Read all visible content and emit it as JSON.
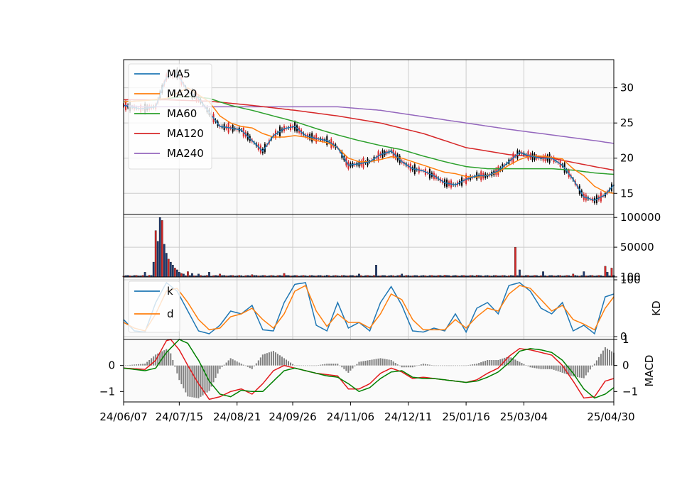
{
  "chart_data": [
    {
      "type": "candlestick",
      "panel": "price",
      "title": "",
      "xlabel": "",
      "ylabel": "",
      "ylim": [
        12,
        34
      ],
      "yticks": [
        15,
        20,
        25,
        30
      ],
      "grid": true,
      "legend_position": "upper-left",
      "series": [
        {
          "name": "MA5",
          "color": "#1f77b4",
          "x": [
            0,
            8,
            15,
            20,
            25,
            30,
            35,
            40,
            45,
            50,
            55,
            60,
            65,
            70,
            75,
            80,
            85,
            90,
            95,
            100,
            105,
            110,
            115,
            120,
            125,
            130,
            135,
            140,
            145,
            150,
            155,
            160,
            165,
            170,
            175,
            180,
            185,
            190,
            195,
            200,
            205,
            210,
            215,
            220,
            225,
            229
          ],
          "y": [
            27.5,
            27.0,
            27.3,
            31.5,
            32.0,
            29.5,
            28.5,
            26.5,
            24.5,
            24.3,
            24.0,
            22.5,
            21.0,
            23.2,
            24.2,
            24.5,
            23.2,
            22.8,
            22.5,
            21.5,
            19.0,
            19.2,
            19.5,
            20.5,
            21.0,
            19.5,
            18.5,
            18.2,
            17.5,
            16.5,
            16.2,
            17.0,
            17.5,
            17.5,
            18.2,
            19.5,
            20.8,
            20.3,
            20.0,
            20.0,
            19.0,
            17.0,
            14.5,
            14.0,
            14.8,
            16.2
          ]
        },
        {
          "name": "MA20",
          "color": "#ff7f0e",
          "x": [
            0,
            10,
            20,
            30,
            40,
            45,
            50,
            55,
            60,
            65,
            70,
            75,
            80,
            85,
            90,
            95,
            100,
            105,
            110,
            115,
            120,
            125,
            130,
            135,
            140,
            145,
            150,
            155,
            160,
            165,
            170,
            175,
            180,
            185,
            190,
            195,
            200,
            205,
            210,
            215,
            220,
            225,
            229
          ],
          "y": [
            28.0,
            28.2,
            28.5,
            30.0,
            28.0,
            26.0,
            25.0,
            24.5,
            24.3,
            23.5,
            23.0,
            23.0,
            23.2,
            23.0,
            22.5,
            22.2,
            21.5,
            20.0,
            19.5,
            19.5,
            19.8,
            20.2,
            20.0,
            19.5,
            19.0,
            18.5,
            18.0,
            17.8,
            17.4,
            17.3,
            17.6,
            18.0,
            19.0,
            19.8,
            20.3,
            20.3,
            20.1,
            19.9,
            18.5,
            17.5,
            16.0,
            15.2,
            15.0
          ]
        },
        {
          "name": "MA60",
          "color": "#2ca02c",
          "x": [
            0,
            15,
            30,
            40,
            50,
            60,
            70,
            80,
            90,
            100,
            110,
            120,
            130,
            140,
            150,
            160,
            170,
            180,
            190,
            200,
            210,
            220,
            229
          ],
          "y": [
            28.0,
            28.3,
            28.8,
            28.5,
            27.5,
            26.8,
            26.0,
            25.2,
            24.2,
            23.3,
            22.5,
            21.8,
            21.2,
            20.3,
            19.5,
            18.8,
            18.5,
            18.5,
            18.5,
            18.5,
            18.3,
            17.9,
            17.7
          ]
        },
        {
          "name": "MA120",
          "color": "#d62728",
          "x": [
            0,
            20,
            40,
            60,
            80,
            100,
            120,
            140,
            160,
            180,
            200,
            220,
            229
          ],
          "y": [
            28.3,
            28.3,
            28.1,
            27.5,
            26.8,
            26.0,
            25.0,
            23.5,
            21.5,
            20.5,
            20.0,
            18.8,
            18.3
          ]
        },
        {
          "name": "MA240",
          "color": "#9467bd",
          "x": [
            0,
            10,
            100,
            120,
            140,
            160,
            180,
            200,
            220,
            229
          ],
          "y": [
            27.5,
            27.3,
            27.3,
            26.8,
            25.9,
            25.0,
            24.1,
            23.3,
            22.5,
            22.1
          ]
        }
      ]
    },
    {
      "type": "bar",
      "panel": "volume",
      "ylim": [
        0,
        105000
      ],
      "yticks": [
        100,
        50000,
        100000
      ],
      "ytick_labels": [
        "100",
        "50000",
        "100000"
      ],
      "grid": true,
      "spikes": [
        [
          8,
          2000
        ],
        [
          10,
          8000
        ],
        [
          12,
          3000
        ],
        [
          14,
          25000
        ],
        [
          15,
          78000
        ],
        [
          16,
          60000
        ],
        [
          17,
          100000
        ],
        [
          18,
          95000
        ],
        [
          19,
          55000
        ],
        [
          20,
          40000
        ],
        [
          21,
          30000
        ],
        [
          22,
          25000
        ],
        [
          23,
          20000
        ],
        [
          24,
          15000
        ],
        [
          25,
          12000
        ],
        [
          26,
          8000
        ],
        [
          27,
          6000
        ],
        [
          28,
          5000
        ],
        [
          30,
          9000
        ],
        [
          32,
          6000
        ],
        [
          35,
          5000
        ],
        [
          40,
          8000
        ],
        [
          45,
          5000
        ],
        [
          60,
          4000
        ],
        [
          75,
          6000
        ],
        [
          95,
          3000
        ],
        [
          110,
          5000
        ],
        [
          118,
          20000
        ],
        [
          130,
          5000
        ],
        [
          150,
          3000
        ],
        [
          165,
          3000
        ],
        [
          183,
          50000
        ],
        [
          185,
          12000
        ],
        [
          196,
          9000
        ],
        [
          210,
          5000
        ],
        [
          215,
          9000
        ],
        [
          225,
          18000
        ],
        [
          226,
          8000
        ],
        [
          228,
          15000
        ]
      ],
      "baseline": 2500
    },
    {
      "type": "line",
      "panel": "kd",
      "ylabel": "KD",
      "ylim": [
        -5,
        105
      ],
      "yticks": [
        0,
        100
      ],
      "grid": true,
      "legend_position": "upper-left",
      "series": [
        {
          "name": "k",
          "color": "#1f77b4",
          "x": [
            0,
            5,
            10,
            15,
            20,
            25,
            30,
            35,
            40,
            45,
            50,
            55,
            60,
            65,
            70,
            75,
            80,
            85,
            90,
            95,
            100,
            105,
            110,
            115,
            120,
            125,
            130,
            135,
            140,
            145,
            150,
            155,
            160,
            165,
            170,
            175,
            180,
            185,
            190,
            195,
            200,
            205,
            210,
            215,
            220,
            225,
            229
          ],
          "y": [
            30,
            10,
            8,
            60,
            95,
            80,
            45,
            10,
            5,
            20,
            45,
            40,
            55,
            12,
            10,
            60,
            92,
            95,
            20,
            10,
            60,
            15,
            25,
            10,
            60,
            88,
            55,
            10,
            8,
            15,
            10,
            40,
            8,
            50,
            60,
            40,
            90,
            95,
            80,
            50,
            40,
            60,
            10,
            20,
            5,
            70,
            75
          ]
        },
        {
          "name": "d",
          "color": "#ff7f0e",
          "x": [
            0,
            5,
            10,
            15,
            20,
            25,
            30,
            35,
            40,
            45,
            50,
            55,
            60,
            65,
            70,
            75,
            80,
            85,
            90,
            95,
            100,
            105,
            110,
            115,
            120,
            125,
            130,
            135,
            140,
            145,
            150,
            155,
            160,
            165,
            170,
            175,
            180,
            185,
            190,
            195,
            200,
            205,
            210,
            215,
            220,
            225,
            229
          ],
          "y": [
            25,
            15,
            10,
            40,
            80,
            85,
            60,
            30,
            12,
            15,
            35,
            40,
            50,
            30,
            15,
            40,
            80,
            90,
            45,
            18,
            40,
            25,
            25,
            15,
            40,
            75,
            65,
            30,
            12,
            12,
            12,
            30,
            15,
            35,
            50,
            45,
            75,
            90,
            85,
            65,
            45,
            55,
            30,
            22,
            12,
            50,
            70
          ]
        }
      ]
    },
    {
      "type": "line",
      "panel": "macd",
      "ylabel": "MACD",
      "left_ylim": [
        -1.4,
        1.0
      ],
      "left_yticks": [
        -1,
        0
      ],
      "right_ylim": [
        -1.4,
        1.0
      ],
      "right_yticks": [
        -1,
        0,
        1
      ],
      "grid": false,
      "series": [
        {
          "name": "",
          "color": "#e31a1c",
          "x": [
            0,
            10,
            15,
            20,
            22,
            26,
            30,
            35,
            40,
            45,
            50,
            55,
            60,
            65,
            70,
            75,
            80,
            85,
            90,
            95,
            100,
            105,
            110,
            115,
            120,
            125,
            130,
            135,
            140,
            145,
            150,
            155,
            160,
            165,
            170,
            175,
            180,
            185,
            190,
            195,
            200,
            205,
            210,
            215,
            220,
            225,
            229
          ],
          "y": [
            -0.1,
            -0.15,
            0.2,
            0.95,
            1.0,
            0.6,
            0.0,
            -0.7,
            -1.3,
            -1.2,
            -1.0,
            -0.9,
            -1.1,
            -0.7,
            -0.2,
            0.0,
            -0.1,
            -0.2,
            -0.3,
            -0.35,
            -0.4,
            -0.9,
            -0.9,
            -0.7,
            -0.3,
            -0.1,
            -0.25,
            -0.5,
            -0.45,
            -0.5,
            -0.55,
            -0.6,
            -0.65,
            -0.55,
            -0.3,
            -0.1,
            0.35,
            0.65,
            0.6,
            0.5,
            0.4,
            0.0,
            -0.6,
            -1.25,
            -1.2,
            -0.6,
            -0.5
          ]
        },
        {
          "name": "",
          "color": "#008000",
          "x": [
            0,
            10,
            15,
            20,
            26,
            30,
            35,
            40,
            45,
            50,
            55,
            60,
            65,
            70,
            75,
            80,
            85,
            90,
            95,
            100,
            105,
            110,
            115,
            120,
            125,
            130,
            135,
            140,
            145,
            150,
            155,
            160,
            165,
            170,
            175,
            180,
            185,
            190,
            195,
            200,
            205,
            210,
            215,
            220,
            225,
            229
          ],
          "y": [
            -0.1,
            -0.2,
            -0.1,
            0.5,
            1.0,
            0.85,
            0.2,
            -0.6,
            -1.1,
            -1.2,
            -0.95,
            -1.0,
            -1.0,
            -0.6,
            -0.2,
            -0.1,
            -0.2,
            -0.3,
            -0.4,
            -0.45,
            -0.7,
            -1.0,
            -0.85,
            -0.5,
            -0.25,
            -0.2,
            -0.45,
            -0.5,
            -0.5,
            -0.55,
            -0.6,
            -0.65,
            -0.6,
            -0.45,
            -0.25,
            0.1,
            0.55,
            0.65,
            0.6,
            0.5,
            0.2,
            -0.3,
            -0.9,
            -1.25,
            -1.1,
            -0.85
          ]
        }
      ],
      "histogram": true
    }
  ],
  "xaxis": {
    "tick_labels": [
      "24/06/07",
      "24/07/15",
      "24/08/21",
      "24/09/26",
      "24/11/06",
      "24/12/11",
      "25/01/16",
      "25/03/04",
      "25/04/30"
    ],
    "tick_index": [
      0,
      26,
      53,
      79,
      106,
      133,
      160,
      187,
      229
    ],
    "n_points": 230
  }
}
